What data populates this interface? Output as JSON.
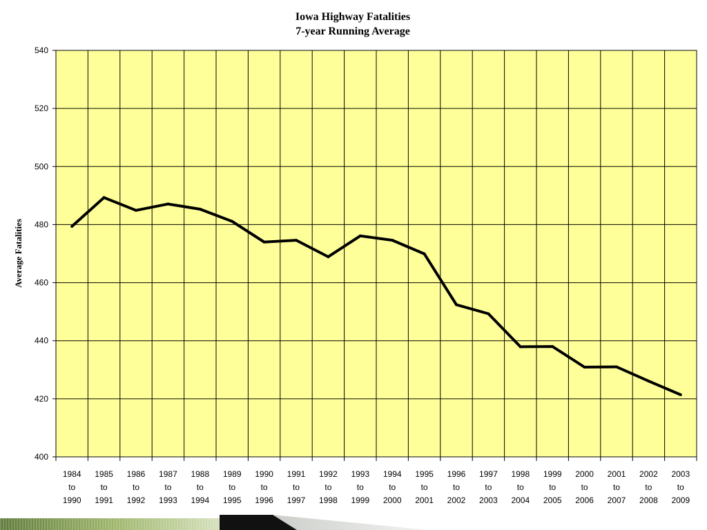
{
  "chart_data": {
    "type": "line",
    "title": "Iowa Highway Fatalities",
    "subtitle": "7-year Running Average",
    "xlabel": "",
    "ylabel": "Average Fatalities",
    "ylim": [
      400,
      540
    ],
    "yticks": [
      400,
      420,
      440,
      460,
      480,
      500,
      520,
      540
    ],
    "grid": true,
    "legend": "none",
    "colors": {
      "plot_background": "#ffff99",
      "line": "#000000",
      "grid": "#000000"
    },
    "categories": [
      [
        "1984",
        "to",
        "1990"
      ],
      [
        "1985",
        "to",
        "1991"
      ],
      [
        "1986",
        "to",
        "1992"
      ],
      [
        "1987",
        "to",
        "1993"
      ],
      [
        "1988",
        "to",
        "1994"
      ],
      [
        "1989",
        "to",
        "1995"
      ],
      [
        "1990",
        "to",
        "1996"
      ],
      [
        "1991",
        "to",
        "1997"
      ],
      [
        "1992",
        "to",
        "1998"
      ],
      [
        "1993",
        "to",
        "1999"
      ],
      [
        "1994",
        "to",
        "2000"
      ],
      [
        "1995",
        "to",
        "2001"
      ],
      [
        "1996",
        "to",
        "2002"
      ],
      [
        "1997",
        "to",
        "2003"
      ],
      [
        "1998",
        "to",
        "2004"
      ],
      [
        "1999",
        "to",
        "2005"
      ],
      [
        "2000",
        "to",
        "2006"
      ],
      [
        "2001",
        "to",
        "2007"
      ],
      [
        "2002",
        "to",
        "2008"
      ],
      [
        "2003",
        "to",
        "2009"
      ]
    ],
    "series": [
      {
        "values": [
          479.4,
          489.3,
          484.9,
          487.1,
          485.3,
          481.1,
          474.0,
          474.6,
          468.9,
          476.1,
          474.6,
          469.9,
          452.4,
          449.3,
          437.9,
          438.0,
          430.9,
          431.0,
          426.1,
          421.4
        ]
      }
    ]
  }
}
